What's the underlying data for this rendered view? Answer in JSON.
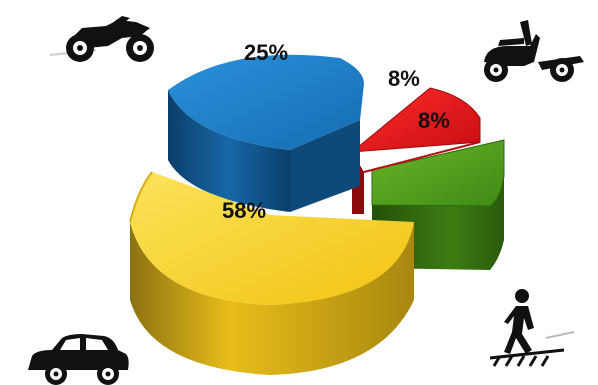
{
  "chart_data": {
    "type": "pie",
    "slices": [
      {
        "label": "58%",
        "value": 58,
        "color": "#f6d12a",
        "dark": "#a88a14",
        "icon": "car-icon"
      },
      {
        "label": "25%",
        "value": 25,
        "color": "#1f7ec8",
        "dark": "#0d4a7a",
        "icon": "motorcycle-icon"
      },
      {
        "label": "8%",
        "value": 8,
        "color": "#e5171a",
        "dark": "#8e0b0d",
        "icon": "scooter-icon"
      },
      {
        "label": "8%",
        "value": 8,
        "color": "#4f9a1c",
        "dark": "#2b5a0d",
        "icon": "pedestrian-icon"
      }
    ],
    "style": "3d-exploded"
  }
}
